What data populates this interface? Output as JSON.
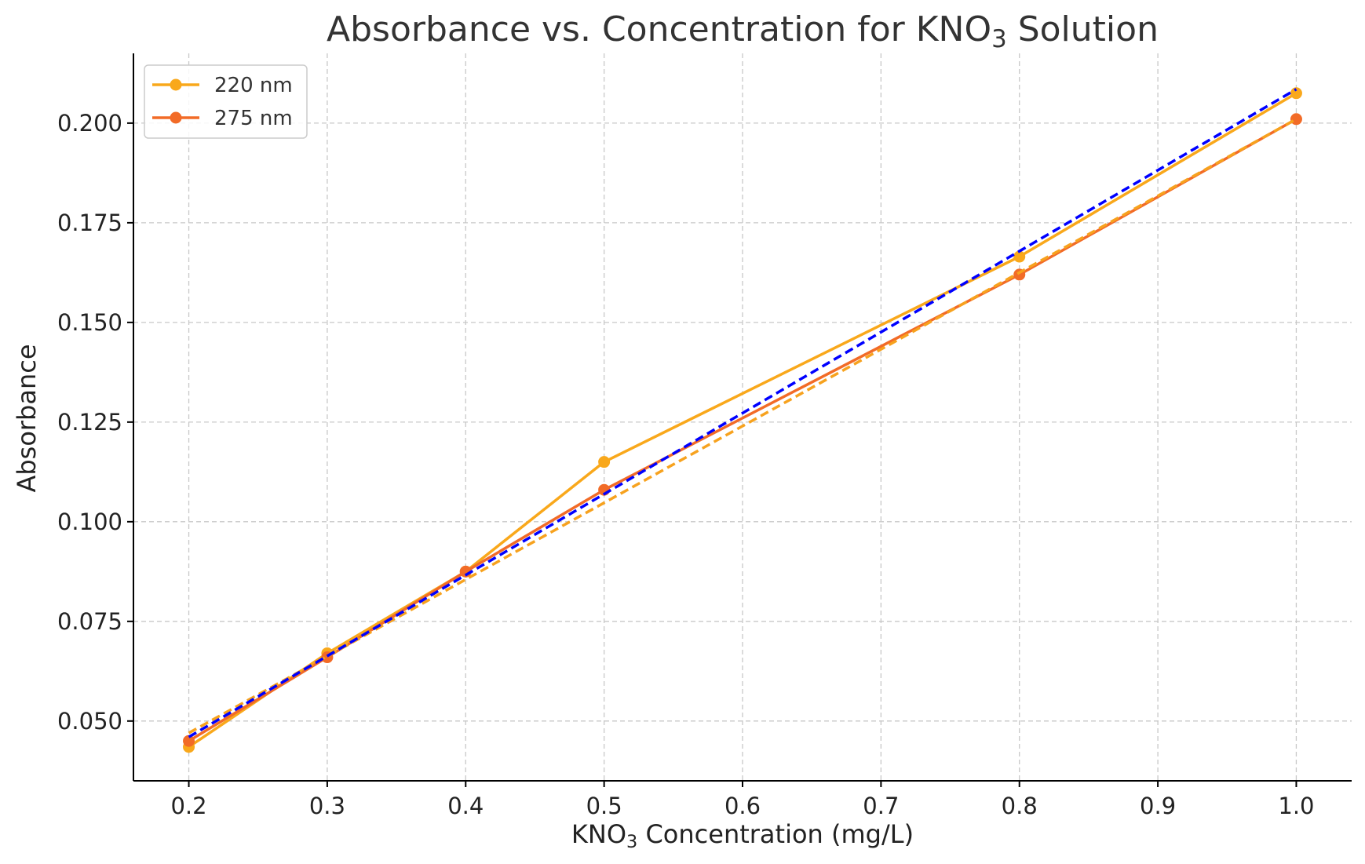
{
  "chart_data": {
    "type": "line",
    "title": {
      "prefix": "Absorbance vs. Concentration for KNO",
      "subscript": "3",
      "suffix": " Solution"
    },
    "xlabel": {
      "prefix": "KNO",
      "subscript": "3",
      "suffix": " Concentration (mg/L)"
    },
    "ylabel": "Absorbance",
    "xlim": [
      0.16,
      1.04
    ],
    "ylim": [
      0.035,
      0.2175
    ],
    "x_ticks": [
      0.2,
      0.3,
      0.4,
      0.5,
      0.6,
      0.7,
      0.8,
      0.9,
      1.0
    ],
    "x_tick_labels": [
      "0.2",
      "0.3",
      "0.4",
      "0.5",
      "0.6",
      "0.7",
      "0.8",
      "0.9",
      "1.0"
    ],
    "y_ticks": [
      0.05,
      0.075,
      0.1,
      0.125,
      0.15,
      0.175,
      0.2
    ],
    "y_tick_labels": [
      "0.050",
      "0.075",
      "0.100",
      "0.125",
      "0.150",
      "0.175",
      "0.200"
    ],
    "grid": true,
    "legend_position": "top-left",
    "x": [
      0.2,
      0.3,
      0.4,
      0.5,
      0.8,
      1.0
    ],
    "series": [
      {
        "name": "220 nm",
        "color": "#f9a81b",
        "marker": "circle",
        "values": [
          0.0435,
          0.067,
          0.0875,
          0.115,
          0.1665,
          0.2075
        ]
      },
      {
        "name": "275 nm",
        "color": "#f26b27",
        "marker": "circle",
        "values": [
          0.045,
          0.066,
          0.0875,
          0.108,
          0.162,
          0.201
        ]
      }
    ],
    "fit_lines": [
      {
        "color": "#f7a21e",
        "style": "dashed",
        "x": [
          0.2,
          1.0
        ],
        "y": [
          0.047,
          0.201
        ]
      },
      {
        "color": "#0000ff",
        "style": "dashed",
        "x": [
          0.2,
          1.0
        ],
        "y": [
          0.046,
          0.2085
        ]
      }
    ]
  }
}
